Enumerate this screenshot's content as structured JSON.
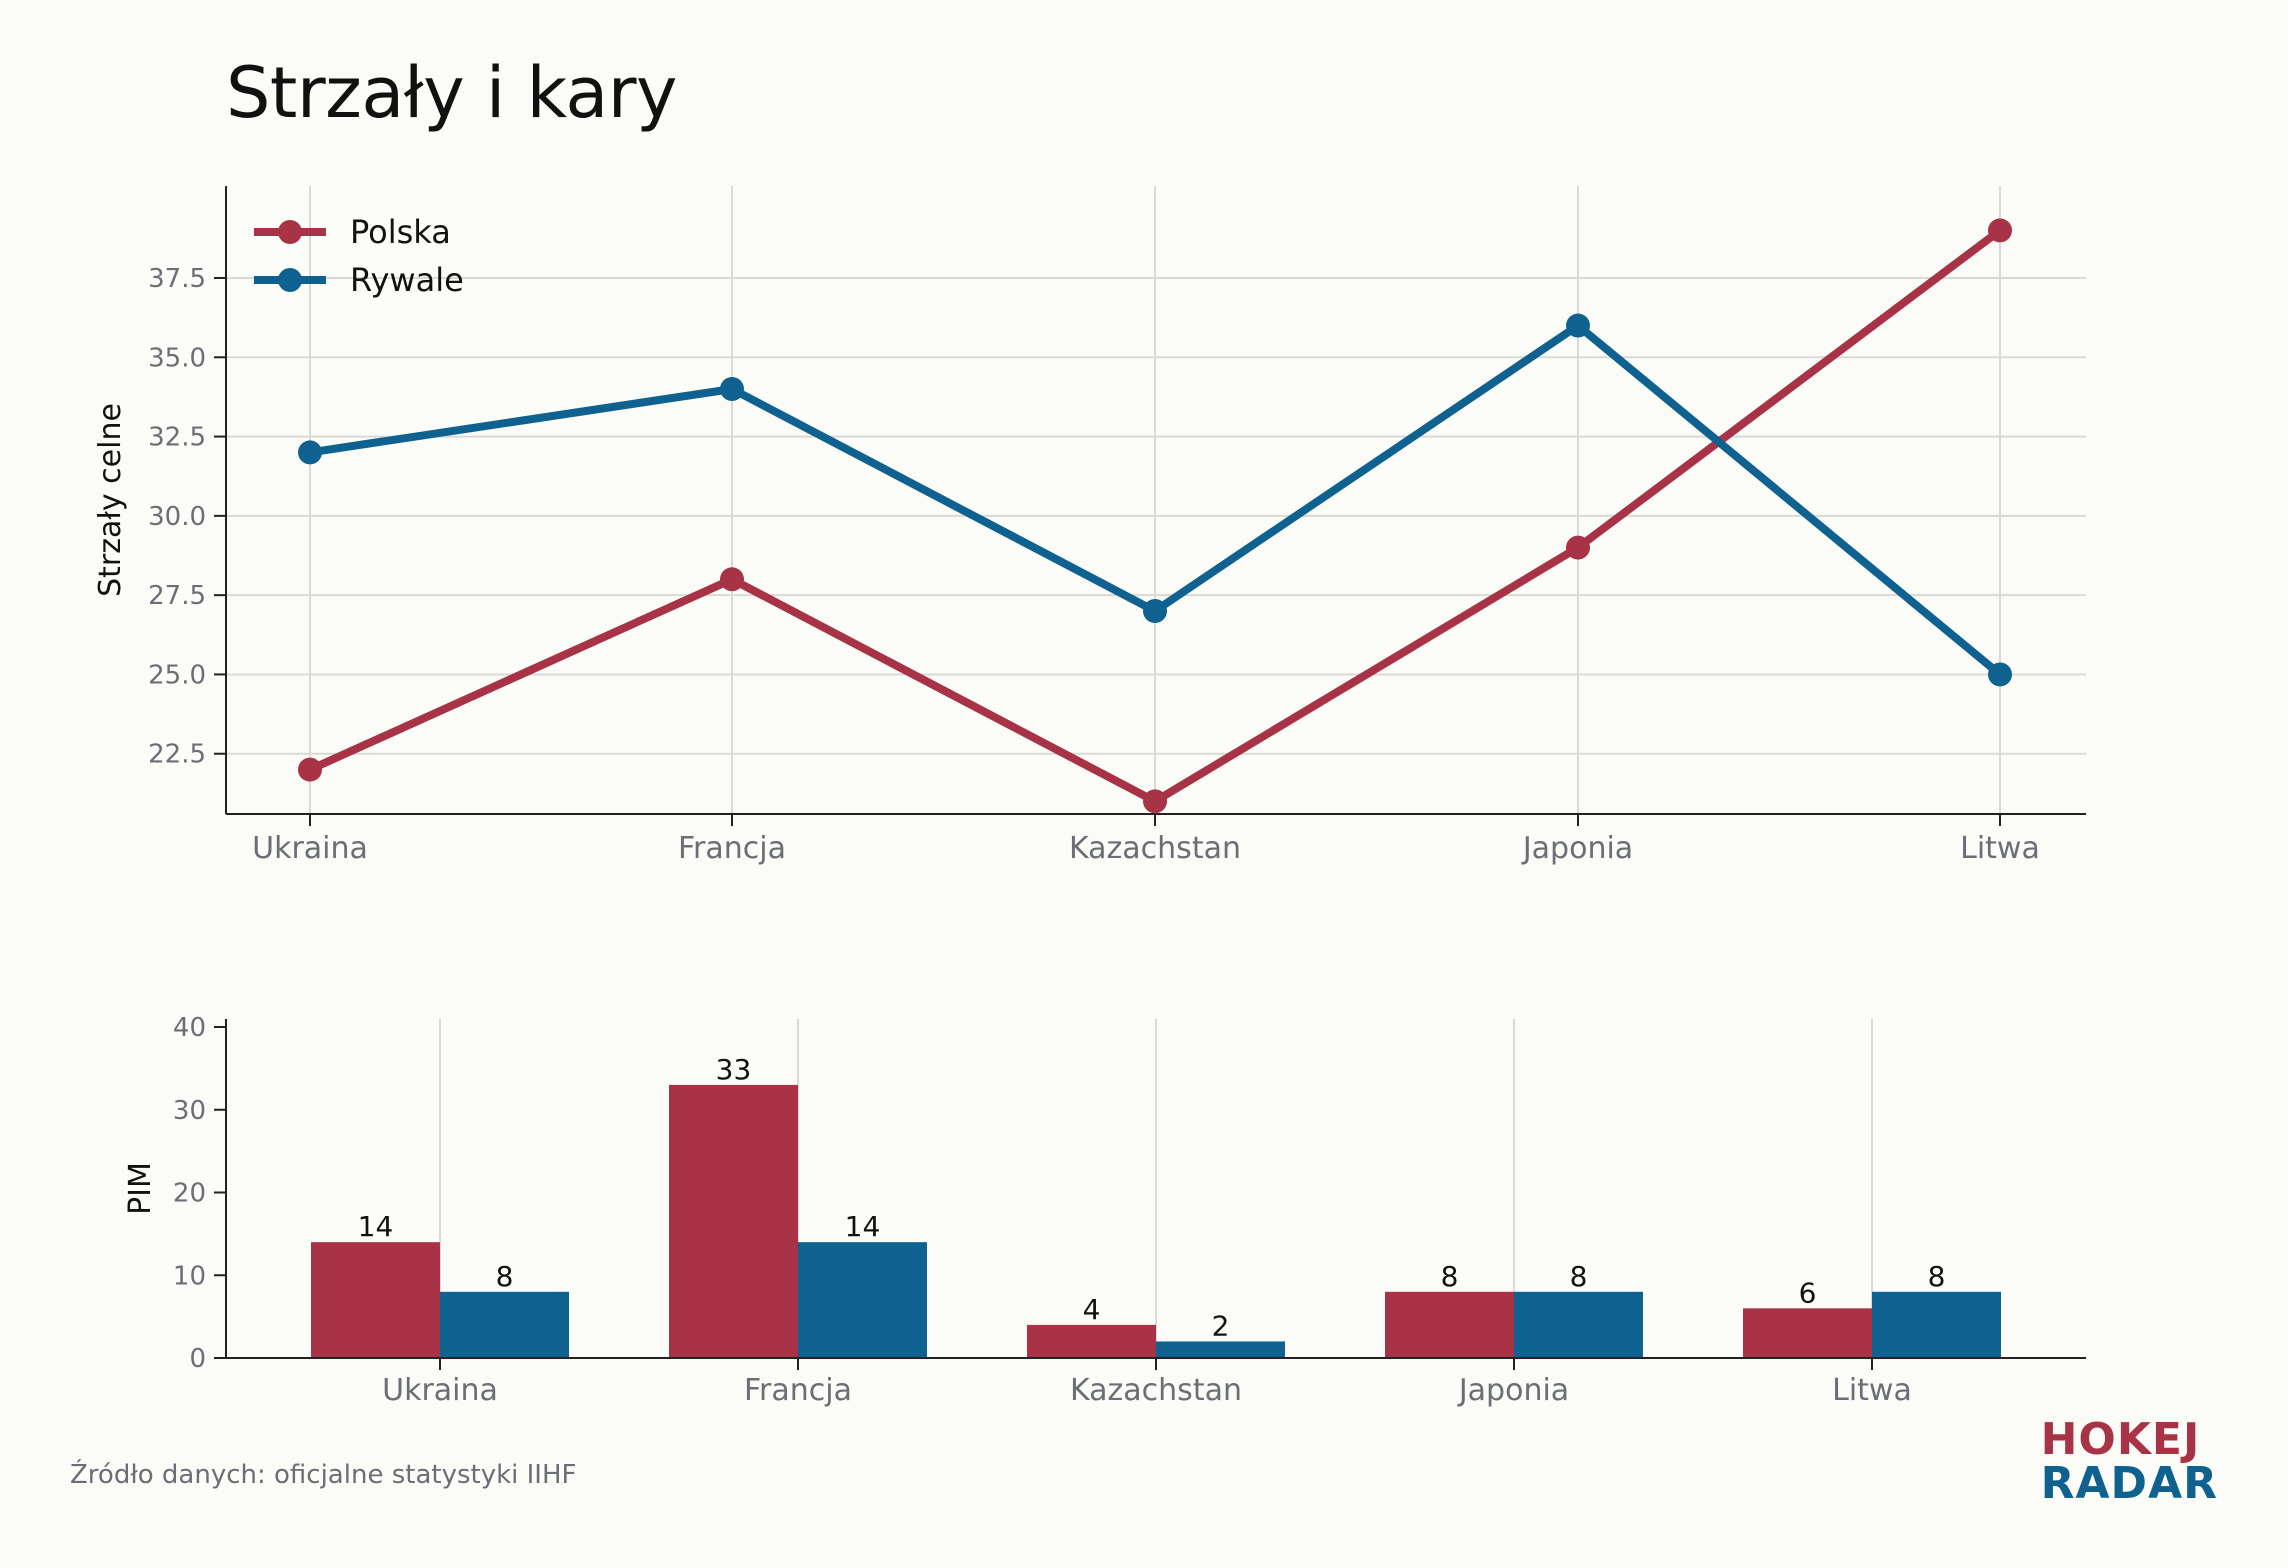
{
  "title": "Strzały i kary",
  "source": "Źródło danych: oficjalne statystyki IIHF",
  "logo": {
    "line1": "HOKEJ",
    "line2": "RADAR",
    "color1": "#a83246",
    "color2": "#0f6190"
  },
  "colors": {
    "polska": "#a83246",
    "rywale": "#0f6190",
    "grid": "#d9d9d9",
    "axis": "#222222"
  },
  "chart_data": [
    {
      "type": "line",
      "categories": [
        "Ukraina",
        "Francja",
        "Kazachstan",
        "Japonia",
        "Litwa"
      ],
      "series": [
        {
          "name": "Polska",
          "values": [
            22,
            28,
            21,
            29,
            39
          ]
        },
        {
          "name": "Rywale",
          "values": [
            32,
            34,
            27,
            36,
            25
          ]
        }
      ],
      "ylabel": "Strzały celne",
      "ylim": [
        20.6,
        40.4
      ],
      "yticks": [
        "22.5",
        "25.0",
        "27.5",
        "30.0",
        "32.5",
        "35.0",
        "37.5"
      ],
      "grid": true,
      "legend": "top-left"
    },
    {
      "type": "bar",
      "categories": [
        "Ukraina",
        "Francja",
        "Kazachstan",
        "Japonia",
        "Litwa"
      ],
      "series": [
        {
          "name": "Polska",
          "values": [
            14,
            33,
            4,
            8,
            6
          ]
        },
        {
          "name": "Rywale",
          "values": [
            8,
            14,
            2,
            8,
            8
          ]
        }
      ],
      "ylabel": "PIM",
      "ylim": [
        0,
        40
      ],
      "yticks": [
        "0",
        "10",
        "20",
        "30",
        "40"
      ],
      "grid": true
    }
  ]
}
